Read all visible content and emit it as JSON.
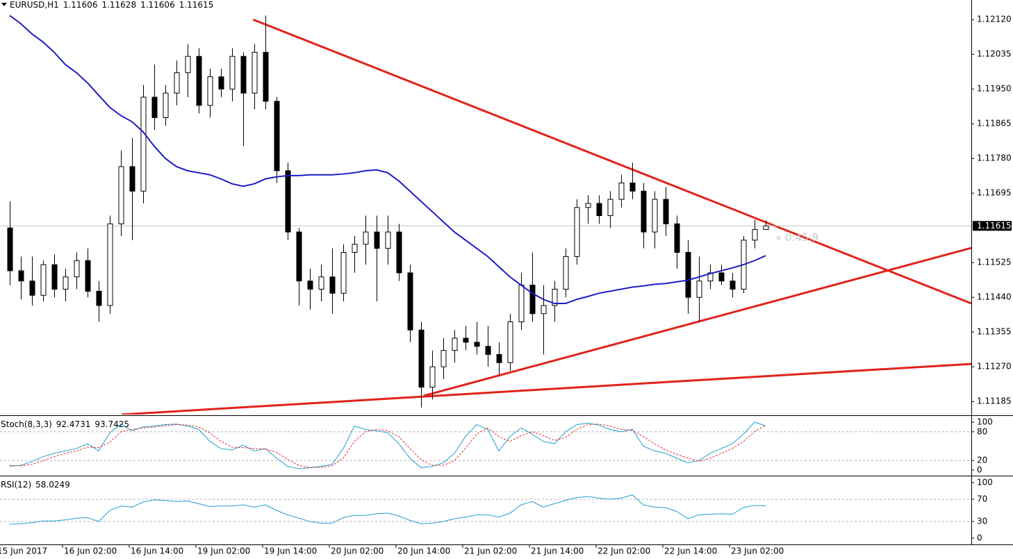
{
  "chart_data": [
    {
      "type": "candlestick",
      "title": "EURUSD,H1",
      "categories": [
        null,
        "15 Jun 2017",
        null,
        null,
        null,
        null,
        null,
        "16 Jun 02:00",
        null,
        null,
        null,
        null,
        null,
        "16 Jun 14:00",
        null,
        null,
        null,
        null,
        null,
        "19 Jun 02:00",
        null,
        null,
        null,
        null,
        null,
        "19 Jun 14:00",
        null,
        null,
        null,
        null,
        null,
        "20 Jun 02:00",
        null,
        null,
        null,
        null,
        null,
        "20 Jun 14:00",
        null,
        null,
        null,
        null,
        null,
        "21 Jun 02:00",
        null,
        null,
        null,
        null,
        null,
        "21 Jun 14:00",
        null,
        null,
        null,
        null,
        null,
        "22 Jun 02:00",
        null,
        null,
        null,
        null,
        null,
        "22 Jun 14:00",
        null,
        null,
        null,
        null,
        null,
        "23 Jun 02:00",
        null
      ],
      "open": [
        1.1161,
        1.11505,
        1.1148,
        1.11445,
        1.1152,
        1.1146,
        1.1149,
        1.1153,
        1.11455,
        1.1142,
        1.1162,
        1.1176,
        1.117,
        1.1193,
        1.1188,
        1.1194,
        1.1199,
        1.1203,
        1.1191,
        1.1198,
        1.1195,
        1.1203,
        1.1194,
        1.1204,
        1.1192,
        1.1175,
        1.116,
        1.1148,
        1.1146,
        1.1149,
        1.1145,
        1.1155,
        1.1157,
        1.116,
        1.1156,
        1.116,
        1.115,
        1.1136,
        1.1122,
        1.1127,
        1.1131,
        1.1134,
        1.1133,
        1.1132,
        1.113,
        1.1128,
        1.1138,
        1.1147,
        1.114,
        1.1142,
        1.1146,
        1.1154,
        1.1166,
        1.1167,
        1.1164,
        1.1168,
        1.1172,
        1.117,
        1.116,
        1.1168,
        1.1162,
        1.1155,
        1.1144,
        1.1148,
        1.115,
        1.1148,
        1.1146,
        1.1158,
        1.11606
      ],
      "high": [
        1.11675,
        1.1154,
        1.1154,
        1.1153,
        1.11545,
        1.1151,
        1.1155,
        1.1156,
        1.1148,
        1.1164,
        1.118,
        1.1183,
        1.1196,
        1.1201,
        1.1196,
        1.1202,
        1.1206,
        1.1205,
        1.12,
        1.12,
        1.1205,
        1.1204,
        1.1206,
        1.1213,
        1.1193,
        1.1177,
        1.1161,
        1.1151,
        1.1152,
        1.1156,
        1.1157,
        1.1159,
        1.1164,
        1.1164,
        1.1164,
        1.1162,
        1.1152,
        1.1138,
        1.1131,
        1.1134,
        1.1136,
        1.1137,
        1.1138,
        1.1137,
        1.1133,
        1.114,
        1.115,
        1.1155,
        1.1147,
        1.1148,
        1.1156,
        1.1168,
        1.1169,
        1.1169,
        1.117,
        1.1174,
        1.1177,
        1.1172,
        1.117,
        1.1171,
        1.1164,
        1.1158,
        1.1154,
        1.1152,
        1.1152,
        1.115,
        1.1159,
        1.1163,
        1.11628
      ],
      "low": [
        1.1147,
        1.11435,
        1.1142,
        1.1143,
        1.1144,
        1.1143,
        1.1146,
        1.1144,
        1.1138,
        1.114,
        1.1159,
        1.1158,
        1.1167,
        1.1185,
        1.1186,
        1.1191,
        1.1193,
        1.1189,
        1.1188,
        1.1193,
        1.1192,
        1.1181,
        1.119,
        1.119,
        1.1172,
        1.1158,
        1.1142,
        1.1141,
        1.1143,
        1.114,
        1.1143,
        1.115,
        1.1152,
        1.1143,
        1.1152,
        1.1148,
        1.1133,
        1.1117,
        1.1119,
        1.1124,
        1.1128,
        1.1131,
        1.113,
        1.1127,
        1.1125,
        1.1126,
        1.1136,
        1.1138,
        1.113,
        1.1138,
        1.1144,
        1.1152,
        1.1162,
        1.1162,
        1.1161,
        1.1166,
        1.1168,
        1.1156,
        1.1156,
        1.1159,
        1.1151,
        1.114,
        1.1138,
        1.1146,
        1.1147,
        1.1144,
        1.1145,
        1.1156,
        1.11606
      ],
      "close": [
        1.11505,
        1.1148,
        1.11445,
        1.1152,
        1.1146,
        1.1149,
        1.1153,
        1.11455,
        1.1142,
        1.1162,
        1.1176,
        1.117,
        1.1193,
        1.1188,
        1.1194,
        1.1199,
        1.1203,
        1.1191,
        1.1198,
        1.1195,
        1.1203,
        1.1194,
        1.1204,
        1.1192,
        1.1175,
        1.116,
        1.1148,
        1.1146,
        1.1149,
        1.1145,
        1.1155,
        1.1157,
        1.116,
        1.1156,
        1.116,
        1.115,
        1.1136,
        1.1122,
        1.1127,
        1.1131,
        1.1134,
        1.1133,
        1.1132,
        1.113,
        1.1128,
        1.1138,
        1.1147,
        1.114,
        1.1142,
        1.1146,
        1.1154,
        1.1166,
        1.1167,
        1.1164,
        1.1168,
        1.1172,
        1.117,
        1.116,
        1.1168,
        1.1162,
        1.1155,
        1.1144,
        1.1148,
        1.115,
        1.1148,
        1.1146,
        1.1158,
        1.11606,
        1.11615
      ],
      "overlays": [
        {
          "color": "#1c1cc4",
          "values": [
            1.1213,
            1.1211,
            1.12085,
            1.12065,
            1.1204,
            1.1201,
            1.1199,
            1.11965,
            1.11935,
            1.11905,
            1.11885,
            1.1187,
            1.11845,
            1.1181,
            1.1178,
            1.1176,
            1.1175,
            1.11745,
            1.1174,
            1.1173,
            1.11718,
            1.11712,
            1.11718,
            1.1173,
            1.11735,
            1.11738,
            1.11738,
            1.1174,
            1.1174,
            1.1174,
            1.11742,
            1.11745,
            1.1175,
            1.11752,
            1.11745,
            1.11725,
            1.117,
            1.11675,
            1.1165,
            1.11625,
            1.116,
            1.1158,
            1.1156,
            1.1154,
            1.11515,
            1.1149,
            1.1147,
            1.1145,
            1.11435,
            1.11425,
            1.11425,
            1.11435,
            1.11442,
            1.1145,
            1.11455,
            1.1146,
            1.11465,
            1.11468,
            1.11472,
            1.11474,
            1.11478,
            1.11482,
            1.1149,
            1.11498,
            1.11505,
            1.11512,
            1.1152,
            1.1153,
            1.11542
          ]
        }
      ],
      "trendlines": [
        {
          "color": "#e0231b",
          "x": [
            21.9,
            86.5
          ],
          "y": [
            1.1212,
            1.11425
          ]
        },
        {
          "color": "#e0231b",
          "x": [
            37.25,
            86.5
          ],
          "y": [
            1.11199,
            1.11561
          ]
        },
        {
          "color": "#e0231b",
          "x": [
            10.06,
            86.5
          ],
          "y": [
            1.11153,
            1.11277
          ]
        }
      ],
      "annotation": "« 0:45:9",
      "ylim": [
        1.11153,
        1.12168
      ],
      "yticks": [
        {
          "value": 1.1212,
          "label": "1.12120"
        },
        1.12035,
        {
          "value": 1.1195,
          "label": "1.11950"
        },
        1.11865,
        {
          "value": 1.1178,
          "label": "1.11780"
        },
        1.11695,
        1.11525,
        {
          "value": 1.1144,
          "label": "1.11440"
        },
        1.11355,
        {
          "value": 1.1127,
          "label": "1.11270"
        },
        1.11185
      ]
    },
    {
      "type": "line",
      "title": "Stoch(8,3,3)",
      "series": [
        {
          "color": "#1e9fd0",
          "dashed": false,
          "values": [
            8,
            10,
            18,
            28,
            35,
            40,
            45,
            55,
            40,
            78,
            96,
            82,
            90,
            92,
            95,
            96,
            92,
            85,
            60,
            45,
            42,
            52,
            40,
            45,
            25,
            8,
            3,
            5,
            8,
            12,
            45,
            92,
            85,
            82,
            78,
            55,
            25,
            5,
            8,
            15,
            35,
            70,
            95,
            85,
            40,
            70,
            88,
            75,
            60,
            55,
            80,
            95,
            98,
            94,
            85,
            80,
            85,
            50,
            40,
            35,
            25,
            15,
            20,
            35,
            45,
            55,
            75,
            100,
            92.4731
          ]
        },
        {
          "color": "#e03030",
          "dashed": true,
          "values": [
            10,
            9,
            12,
            20,
            28,
            35,
            40,
            48,
            47,
            58,
            80,
            85,
            88,
            90,
            93,
            95,
            94,
            90,
            78,
            60,
            48,
            47,
            45,
            44,
            37,
            22,
            10,
            5,
            6,
            9,
            25,
            60,
            80,
            85,
            82,
            70,
            45,
            22,
            10,
            10,
            20,
            45,
            75,
            88,
            70,
            60,
            72,
            80,
            72,
            62,
            68,
            85,
            95,
            96,
            92,
            85,
            83,
            70,
            55,
            42,
            33,
            25,
            18,
            25,
            35,
            45,
            60,
            80,
            93.7425
          ]
        }
      ],
      "levels": [
        20,
        80
      ],
      "ylim": [
        -8.7,
        111.6
      ],
      "yticks": [
        0,
        20,
        80,
        100
      ]
    },
    {
      "type": "line",
      "title": "RSI(12)",
      "series": [
        {
          "color": "#1e9fd0",
          "dashed": false,
          "values": [
            25,
            26,
            28,
            31,
            31,
            33,
            36,
            37,
            30,
            50,
            58,
            56,
            65,
            69,
            68,
            66,
            67,
            62,
            57,
            58,
            58,
            60,
            56,
            60,
            50,
            42,
            36,
            30,
            27,
            27,
            37,
            41,
            41,
            44,
            45,
            40,
            32,
            26,
            27,
            30,
            35,
            38,
            42,
            42,
            38,
            45,
            60,
            66,
            56,
            62,
            68,
            73,
            75,
            72,
            70,
            72,
            78,
            60,
            56,
            55,
            48,
            35,
            42,
            43,
            44,
            43,
            55,
            59,
            58.0249
          ]
        }
      ],
      "levels": [
        30,
        70
      ],
      "ylim": [
        -10,
        110
      ],
      "yticks": [
        0,
        30,
        70,
        100
      ]
    }
  ]
}
